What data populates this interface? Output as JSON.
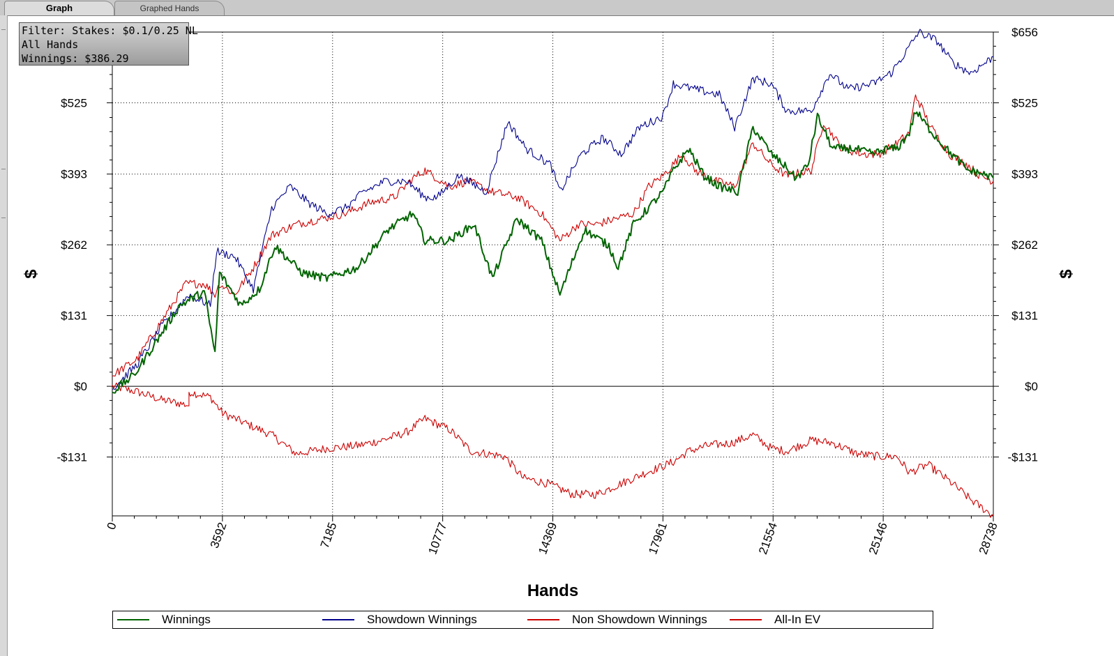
{
  "tabs": [
    {
      "label": "Graph",
      "active": true
    },
    {
      "label": "Graphed Hands",
      "active": false
    }
  ],
  "filter": {
    "line1": "Filter: Stakes: $0.1/0.25 NL",
    "line2": "All Hands",
    "line3": "Winnings: $386.29"
  },
  "chart_data": {
    "type": "line",
    "xlabel": "Hands",
    "ylabel": "$",
    "xlim": [
      0,
      28738
    ],
    "ylim": [
      -240,
      656
    ],
    "x_ticks": [
      0,
      3592,
      7185,
      10777,
      14369,
      17961,
      21554,
      25146,
      28738
    ],
    "x_tick_labels": [
      "0",
      "3592",
      "7185",
      "10777",
      "14369",
      "17961",
      "21554",
      "25146",
      "28738"
    ],
    "y_ticks": [
      -131,
      0,
      131,
      262,
      393,
      525,
      656
    ],
    "y_tick_labels": [
      "-$131",
      "$0",
      "$131",
      "$262",
      "$393",
      "$525",
      "$656"
    ],
    "grid": true,
    "legend_position": "bottom",
    "series": [
      {
        "name": "Winnings",
        "color": "#006400",
        "points": [
          [
            0,
            -10
          ],
          [
            700,
            20
          ],
          [
            1400,
            80
          ],
          [
            2200,
            150
          ],
          [
            3000,
            175
          ],
          [
            3350,
            60
          ],
          [
            3500,
            210
          ],
          [
            4200,
            150
          ],
          [
            4800,
            180
          ],
          [
            5300,
            260
          ],
          [
            6200,
            210
          ],
          [
            7000,
            200
          ],
          [
            8000,
            220
          ],
          [
            9000,
            290
          ],
          [
            9800,
            320
          ],
          [
            10200,
            270
          ],
          [
            11000,
            270
          ],
          [
            11800,
            300
          ],
          [
            12400,
            200
          ],
          [
            13200,
            310
          ],
          [
            14000,
            270
          ],
          [
            14600,
            170
          ],
          [
            15400,
            290
          ],
          [
            16200,
            260
          ],
          [
            16500,
            220
          ],
          [
            17000,
            300
          ],
          [
            17961,
            360
          ],
          [
            18300,
            400
          ],
          [
            18800,
            440
          ],
          [
            19300,
            390
          ],
          [
            19800,
            370
          ],
          [
            20400,
            360
          ],
          [
            20900,
            480
          ],
          [
            21500,
            430
          ],
          [
            21900,
            410
          ],
          [
            22300,
            385
          ],
          [
            22700,
            410
          ],
          [
            23000,
            500
          ],
          [
            23500,
            440
          ],
          [
            24200,
            440
          ],
          [
            24800,
            430
          ],
          [
            25300,
            440
          ],
          [
            25600,
            440
          ],
          [
            26000,
            470
          ],
          [
            26200,
            510
          ],
          [
            26600,
            480
          ],
          [
            27200,
            440
          ],
          [
            27900,
            400
          ],
          [
            28300,
            395
          ],
          [
            28738,
            386
          ]
        ]
      },
      {
        "name": "Showdown Winnings",
        "color": "#00008b",
        "points": [
          [
            0,
            -5
          ],
          [
            800,
            40
          ],
          [
            1600,
            110
          ],
          [
            2500,
            170
          ],
          [
            3200,
            150
          ],
          [
            3400,
            250
          ],
          [
            4000,
            240
          ],
          [
            4600,
            180
          ],
          [
            5200,
            330
          ],
          [
            5800,
            370
          ],
          [
            6400,
            340
          ],
          [
            7000,
            320
          ],
          [
            7600,
            330
          ],
          [
            8200,
            360
          ],
          [
            8900,
            380
          ],
          [
            9600,
            380
          ],
          [
            10200,
            350
          ],
          [
            10600,
            350
          ],
          [
            11300,
            390
          ],
          [
            12200,
            360
          ],
          [
            12900,
            490
          ],
          [
            13500,
            440
          ],
          [
            14300,
            410
          ],
          [
            14600,
            360
          ],
          [
            15300,
            430
          ],
          [
            16000,
            460
          ],
          [
            16600,
            430
          ],
          [
            17200,
            480
          ],
          [
            17961,
            500
          ],
          [
            18300,
            560
          ],
          [
            19000,
            550
          ],
          [
            19800,
            540
          ],
          [
            20300,
            480
          ],
          [
            20900,
            570
          ],
          [
            21500,
            560
          ],
          [
            22000,
            510
          ],
          [
            22800,
            510
          ],
          [
            23400,
            580
          ],
          [
            24000,
            550
          ],
          [
            24800,
            560
          ],
          [
            25400,
            580
          ],
          [
            25900,
            620
          ],
          [
            26300,
            656
          ],
          [
            26900,
            640
          ],
          [
            27400,
            600
          ],
          [
            28000,
            580
          ],
          [
            28738,
            610
          ]
        ]
      },
      {
        "name": "Non Showdown Winnings",
        "color": "#cc0000",
        "points": [
          [
            0,
            0
          ],
          [
            800,
            -10
          ],
          [
            1600,
            -25
          ],
          [
            2500,
            -35
          ],
          [
            2500,
            -10
          ],
          [
            3200,
            -20
          ],
          [
            3600,
            -50
          ],
          [
            4400,
            -70
          ],
          [
            5200,
            -90
          ],
          [
            6000,
            -125
          ],
          [
            7000,
            -115
          ],
          [
            8000,
            -110
          ],
          [
            8800,
            -100
          ],
          [
            9600,
            -85
          ],
          [
            10200,
            -60
          ],
          [
            11000,
            -80
          ],
          [
            11700,
            -120
          ],
          [
            12800,
            -130
          ],
          [
            13400,
            -170
          ],
          [
            14200,
            -180
          ],
          [
            15000,
            -200
          ],
          [
            15800,
            -200
          ],
          [
            16600,
            -180
          ],
          [
            17400,
            -160
          ],
          [
            18300,
            -140
          ],
          [
            18800,
            -120
          ],
          [
            19400,
            -110
          ],
          [
            20200,
            -105
          ],
          [
            20900,
            -90
          ],
          [
            21500,
            -115
          ],
          [
            22000,
            -120
          ],
          [
            22800,
            -100
          ],
          [
            23500,
            -105
          ],
          [
            24300,
            -125
          ],
          [
            25000,
            -130
          ],
          [
            25600,
            -130
          ],
          [
            26000,
            -160
          ],
          [
            26600,
            -145
          ],
          [
            27400,
            -180
          ],
          [
            28000,
            -210
          ],
          [
            28738,
            -240
          ]
        ]
      },
      {
        "name": "All-In EV",
        "color": "#cc0000",
        "points": [
          [
            0,
            20
          ],
          [
            800,
            50
          ],
          [
            1600,
            120
          ],
          [
            2400,
            190
          ],
          [
            3000,
            190
          ],
          [
            3350,
            170
          ],
          [
            3500,
            190
          ],
          [
            4000,
            170
          ],
          [
            4600,
            220
          ],
          [
            5200,
            280
          ],
          [
            6000,
            300
          ],
          [
            6800,
            310
          ],
          [
            7600,
            320
          ],
          [
            8400,
            340
          ],
          [
            9200,
            350
          ],
          [
            9800,
            385
          ],
          [
            10200,
            400
          ],
          [
            11000,
            370
          ],
          [
            11600,
            380
          ],
          [
            12400,
            360
          ],
          [
            13200,
            350
          ],
          [
            14000,
            320
          ],
          [
            14600,
            270
          ],
          [
            15200,
            300
          ],
          [
            15800,
            300
          ],
          [
            16400,
            310
          ],
          [
            17000,
            320
          ],
          [
            17500,
            370
          ],
          [
            17961,
            390
          ],
          [
            18600,
            430
          ],
          [
            19000,
            400
          ],
          [
            19700,
            380
          ],
          [
            20300,
            370
          ],
          [
            20900,
            450
          ],
          [
            21500,
            410
          ],
          [
            22000,
            390
          ],
          [
            22800,
            400
          ],
          [
            23200,
            490
          ],
          [
            23800,
            440
          ],
          [
            24500,
            430
          ],
          [
            25000,
            430
          ],
          [
            25600,
            450
          ],
          [
            26000,
            470
          ],
          [
            26200,
            540
          ],
          [
            26700,
            480
          ],
          [
            27300,
            430
          ],
          [
            27900,
            410
          ],
          [
            28300,
            390
          ],
          [
            28738,
            380
          ]
        ]
      }
    ]
  },
  "legend": [
    {
      "label": "Winnings",
      "color": "#006400"
    },
    {
      "label": "Showdown Winnings",
      "color": "#00008b"
    },
    {
      "label": "Non Showdown Winnings",
      "color": "#cc0000"
    },
    {
      "label": "All-In EV",
      "color": "#cc0000"
    }
  ]
}
